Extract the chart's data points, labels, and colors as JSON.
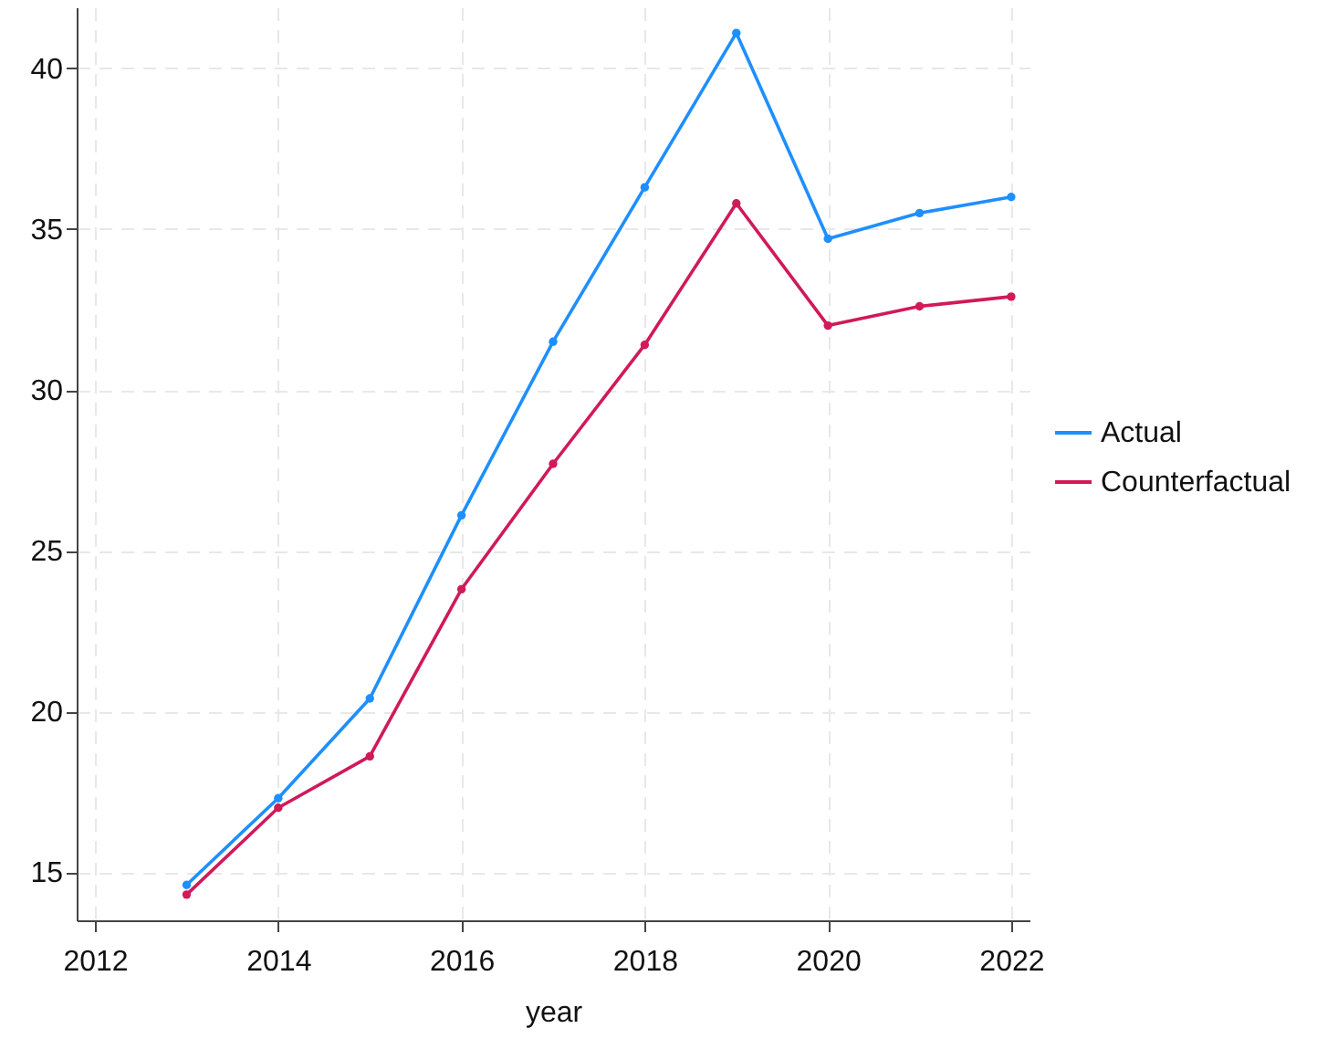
{
  "chart_data": {
    "type": "line",
    "xlabel": "year",
    "x": [
      2013,
      2014,
      2015,
      2016,
      2017,
      2018,
      2019,
      2020,
      2021,
      2022
    ],
    "series": [
      {
        "name": "Actual",
        "color": "#1e8fff",
        "values": [
          14.6,
          17.3,
          20.4,
          26.1,
          31.5,
          36.3,
          41.1,
          34.7,
          35.5,
          36.0
        ]
      },
      {
        "name": "Counterfactual",
        "color": "#d01a5a",
        "values": [
          14.3,
          17.0,
          18.6,
          23.8,
          27.7,
          31.4,
          35.8,
          32.0,
          32.6,
          32.9
        ]
      }
    ],
    "xlim": [
      2011.8,
      2022.2
    ],
    "xticks": [
      2012,
      2014,
      2016,
      2018,
      2020,
      2022
    ],
    "ylim": [
      13.5,
      41.9
    ],
    "yticks": [
      15,
      20,
      25,
      30,
      35,
      40
    ],
    "grid": true,
    "legend": "right",
    "marker": "circle",
    "line_style": "solid"
  }
}
